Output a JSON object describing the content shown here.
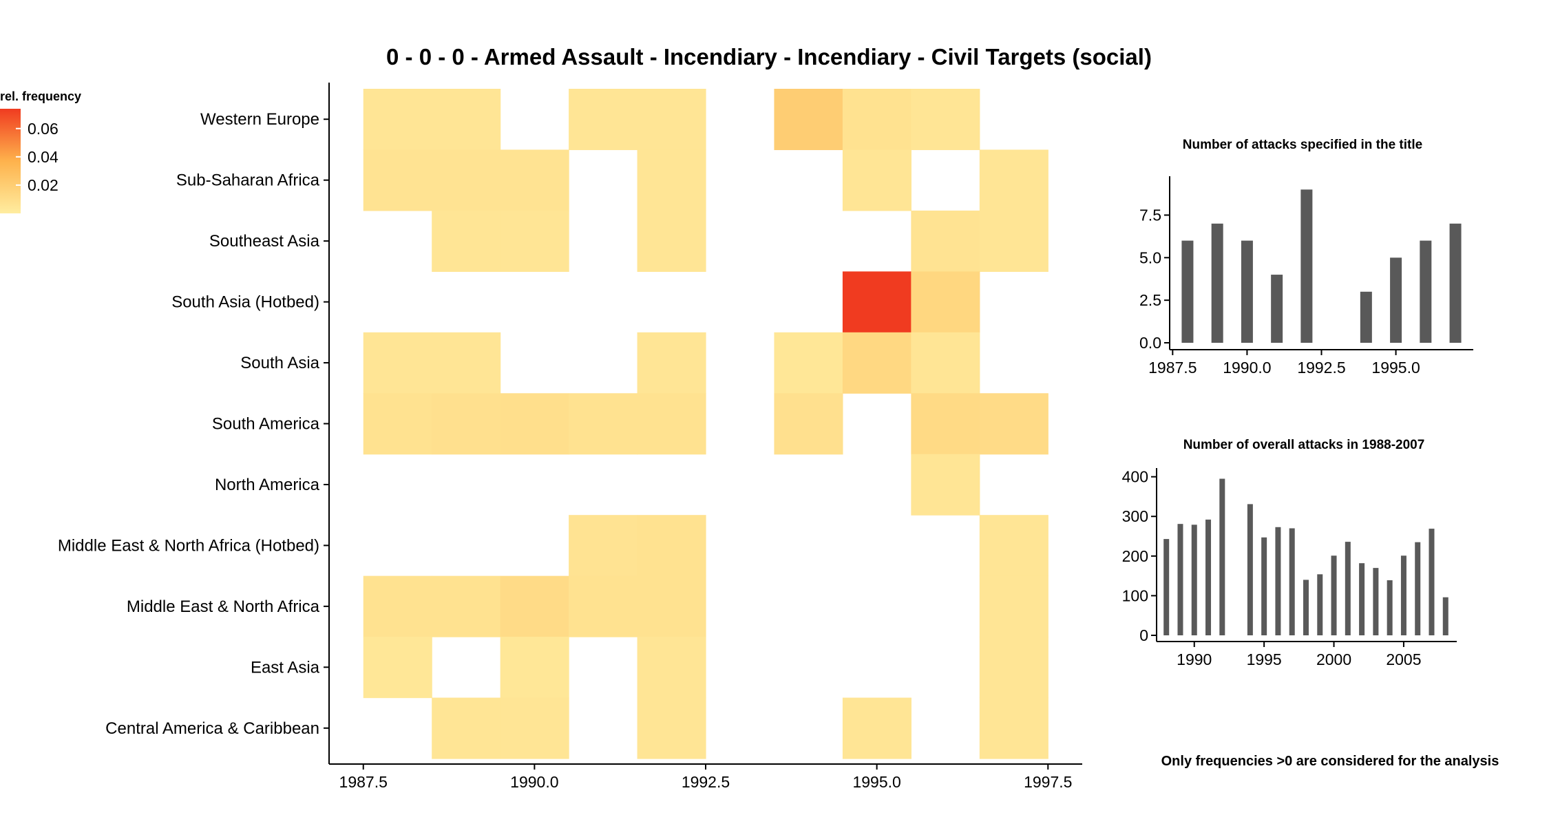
{
  "title": "0 - 0 - 0 - Armed Assault - Incendiary - Incendiary - Civil Targets (social)",
  "note": "Only frequencies >0 are considered for the analysis",
  "legend": {
    "title": "rel. frequency",
    "ticks": [
      {
        "value": 0.06,
        "label": "0.06"
      },
      {
        "value": 0.04,
        "label": "0.04"
      },
      {
        "value": 0.02,
        "label": "0.02"
      }
    ],
    "range": [
      0.0,
      0.074
    ],
    "colors": [
      "#FFEDA0",
      "#FEB24C",
      "#F03B20"
    ]
  },
  "chart_data": [
    {
      "type": "heatmap",
      "title": "0 - 0 - 0 - Armed Assault - Incendiary - Incendiary - Civil Targets (social)",
      "x_ticks": [
        "1987.5",
        "1990.0",
        "1992.5",
        "1995.0",
        "1997.5"
      ],
      "x_tick_values": [
        1987.5,
        1990.0,
        1992.5,
        1995.0,
        1997.5
      ],
      "xlim": [
        1987.0,
        1998.0
      ],
      "x_years": [
        1988,
        1989,
        1990,
        1991,
        1992,
        1993,
        1994,
        1995,
        1996,
        1997
      ],
      "y_categories": [
        "Western Europe",
        "Sub-Saharan Africa",
        "Southeast Asia",
        "South Asia (Hotbed)",
        "South Asia",
        "South America",
        "North America",
        "Middle East & North Africa (Hotbed)",
        "Middle East & North Africa",
        "East Asia",
        "Central America & Caribbean"
      ],
      "values": [
        [
          0.005,
          0.005,
          null,
          0.005,
          0.005,
          null,
          0.02,
          0.007,
          0.005,
          null
        ],
        [
          0.006,
          0.006,
          0.006,
          null,
          0.005,
          null,
          null,
          0.005,
          null,
          0.005
        ],
        [
          null,
          0.005,
          0.005,
          null,
          0.005,
          null,
          null,
          null,
          0.006,
          0.005
        ],
        [
          null,
          null,
          null,
          null,
          null,
          null,
          null,
          0.074,
          0.014,
          null
        ],
        [
          0.005,
          0.005,
          null,
          null,
          0.005,
          null,
          0.004,
          0.013,
          0.005,
          null
        ],
        [
          0.007,
          0.008,
          0.009,
          0.007,
          0.007,
          null,
          0.008,
          null,
          0.012,
          0.011
        ],
        [
          null,
          null,
          null,
          null,
          null,
          null,
          null,
          null,
          0.005,
          null
        ],
        [
          null,
          null,
          null,
          0.006,
          0.007,
          null,
          null,
          null,
          null,
          0.005
        ],
        [
          0.007,
          0.007,
          0.011,
          0.007,
          0.007,
          null,
          null,
          null,
          null,
          0.005
        ],
        [
          0.004,
          null,
          0.004,
          null,
          0.005,
          null,
          null,
          null,
          null,
          0.005
        ],
        [
          null,
          0.005,
          0.005,
          null,
          0.005,
          null,
          null,
          0.005,
          null,
          0.005
        ]
      ]
    },
    {
      "type": "bar",
      "title": "Number of attacks specified in the title",
      "x": [
        1988,
        1989,
        1990,
        1991,
        1992,
        1994,
        1995,
        1996,
        1997
      ],
      "values": [
        6,
        7,
        6,
        4,
        9,
        3,
        5,
        6,
        7
      ],
      "x_ticks": [
        "1987.5",
        "1990.0",
        "1992.5",
        "1995.0"
      ],
      "x_tick_values": [
        1987.5,
        1990.0,
        1992.5,
        1995.0
      ],
      "y_ticks": [
        "0.0",
        "2.5",
        "5.0",
        "7.5"
      ],
      "y_tick_values": [
        0,
        2.5,
        5.0,
        7.5
      ],
      "xlim": [
        1987.4,
        1997.6
      ],
      "ylim": [
        0,
        9.5
      ]
    },
    {
      "type": "bar",
      "title": "Number of overall attacks in 1988-2007",
      "x": [
        1988,
        1989,
        1990,
        1991,
        1992,
        1994,
        1995,
        1996,
        1997,
        1998,
        1999,
        2000,
        2001,
        2002,
        2003,
        2004,
        2005,
        2006,
        2007,
        2008
      ],
      "values": [
        243,
        281,
        279,
        292,
        395,
        331,
        247,
        273,
        270,
        140,
        154,
        201,
        236,
        182,
        170,
        139,
        201,
        235,
        269,
        96
      ],
      "x_ticks": [
        "1990",
        "1995",
        "2000",
        "2005"
      ],
      "x_tick_values": [
        1990,
        1995,
        2000,
        2005
      ],
      "y_ticks": [
        "0",
        "100",
        "200",
        "300",
        "400"
      ],
      "y_tick_values": [
        0,
        100,
        200,
        300,
        400
      ],
      "xlim": [
        1987.3,
        2008.8
      ],
      "ylim": [
        0,
        415
      ]
    }
  ]
}
